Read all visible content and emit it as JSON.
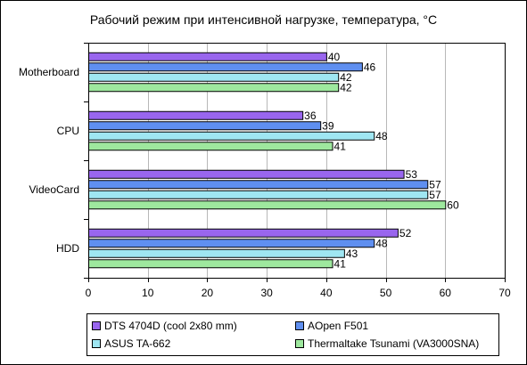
{
  "chart_data": {
    "type": "bar",
    "orientation": "horizontal",
    "title": "Рабочий режим при интенсивной нагрузке, температура, °С",
    "categories": [
      "Motherboard",
      "CPU",
      "VideoCard",
      "HDD"
    ],
    "series": [
      {
        "name": "DTS 4704D (cool 2x80 mm)",
        "values": [
          40,
          36,
          53,
          52
        ],
        "color": "#9966ee"
      },
      {
        "name": "AOpen F501",
        "values": [
          46,
          39,
          57,
          48
        ],
        "color": "#5f8ff0"
      },
      {
        "name": "ASUS TA-662",
        "values": [
          42,
          48,
          57,
          43
        ],
        "color": "#9fe6f2"
      },
      {
        "name": "Thermaltake Tsunami (VA3000SNA)",
        "values": [
          42,
          41,
          60,
          41
        ],
        "color": "#9ee89e"
      }
    ],
    "xlim": [
      0,
      70
    ],
    "xticks": [
      0,
      10,
      20,
      30,
      40,
      50,
      60,
      70
    ],
    "grid": true,
    "legend_position": "bottom"
  }
}
